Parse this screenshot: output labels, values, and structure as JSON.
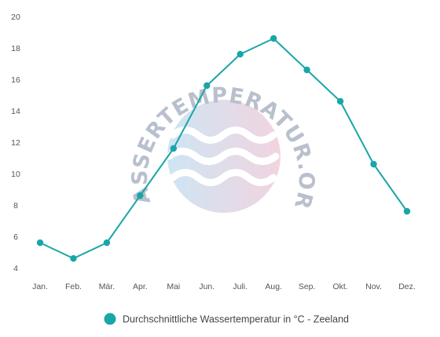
{
  "watermark": {
    "text": "WASSERTEMPERATUR.ORG",
    "icon": "waves-logo"
  },
  "chart_data": {
    "type": "line",
    "categories": [
      "Jan.",
      "Feb.",
      "Mär.",
      "Apr.",
      "Mai",
      "Jun.",
      "Juli.",
      "Aug.",
      "Sep.",
      "Okt.",
      "Nov.",
      "Dez."
    ],
    "series": [
      {
        "name": "Durchschnittliche Wassertemperatur in °C - Zeeland",
        "values": [
          5.6,
          4.6,
          5.6,
          8.6,
          11.6,
          15.6,
          17.6,
          18.6,
          16.6,
          14.6,
          10.6,
          7.6
        ],
        "color": "#1aa6a8"
      }
    ],
    "ylim": [
      4,
      20
    ],
    "yticks": [
      4,
      6,
      8,
      10,
      12,
      14,
      16,
      18,
      20
    ],
    "grid": false,
    "legend": "bottom-center",
    "title": "",
    "xlabel": "",
    "ylabel": ""
  }
}
